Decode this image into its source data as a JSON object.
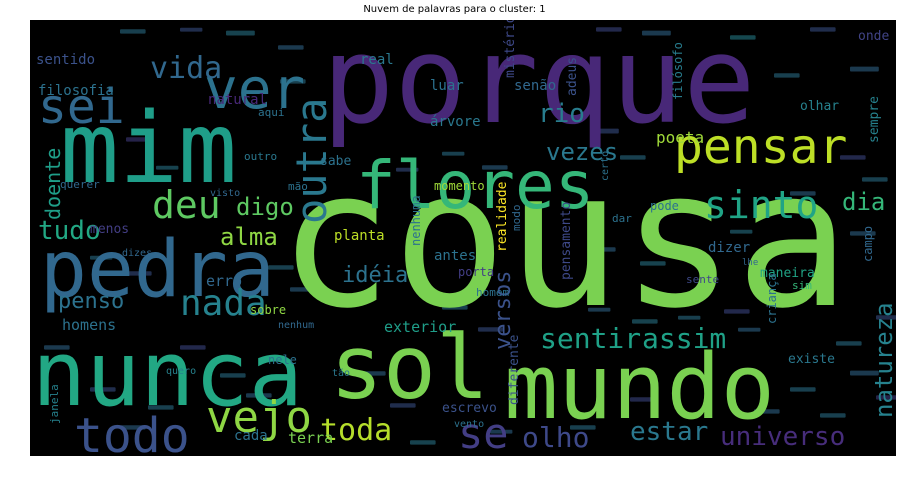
{
  "chart_data": {
    "type": "wordcloud",
    "title": "Nuvem de palavras para o cluster: 1",
    "background": "#000000",
    "colormap": "viridis",
    "axes_visible": false,
    "words": [
      {
        "text": "cousa",
        "weight": 100,
        "color": "#7ad151",
        "vertical": false
      },
      {
        "text": "porque",
        "weight": 92,
        "color": "#482878",
        "vertical": false
      },
      {
        "text": "mim",
        "weight": 70,
        "color": "#1f9e89",
        "vertical": false
      },
      {
        "text": "mundo",
        "weight": 64,
        "color": "#7ad151",
        "vertical": false
      },
      {
        "text": "nunca",
        "weight": 64,
        "color": "#22a884",
        "vertical": false
      },
      {
        "text": "sol",
        "weight": 62,
        "color": "#7ad151",
        "vertical": false
      },
      {
        "text": "pedra",
        "weight": 55,
        "color": "#31688e",
        "vertical": false
      },
      {
        "text": "flores",
        "weight": 48,
        "color": "#35b779",
        "vertical": false
      },
      {
        "text": "pensar",
        "weight": 40,
        "color": "#bddf26",
        "vertical": false
      },
      {
        "text": "ver",
        "weight": 40,
        "color": "#2c728e",
        "vertical": false
      },
      {
        "text": "sei",
        "weight": 34,
        "color": "#31688e",
        "vertical": false
      },
      {
        "text": "todo",
        "weight": 34,
        "color": "#3b528b",
        "vertical": false
      },
      {
        "text": "vejo",
        "weight": 31,
        "color": "#8fd744",
        "vertical": false
      },
      {
        "text": "se",
        "weight": 30,
        "color": "#433e85",
        "vertical": false
      },
      {
        "text": "outra",
        "weight": 30,
        "color": "#2a788e",
        "vertical": true
      },
      {
        "text": "deu",
        "weight": 28,
        "color": "#5ec962",
        "vertical": false
      },
      {
        "text": "sinto",
        "weight": 28,
        "color": "#20a486",
        "vertical": false
      },
      {
        "text": "nada",
        "weight": 26,
        "color": "#26828e",
        "vertical": false
      },
      {
        "text": "toda",
        "weight": 22,
        "color": "#b5de2b",
        "vertical": false
      },
      {
        "text": "vida",
        "weight": 22,
        "color": "#31688e",
        "vertical": false
      },
      {
        "text": "sentir",
        "weight": 20,
        "color": "#1fa187",
        "vertical": false
      },
      {
        "text": "assim",
        "weight": 20,
        "color": "#1fa187",
        "vertical": false
      },
      {
        "text": "olho",
        "weight": 20,
        "color": "#3e4989",
        "vertical": false
      },
      {
        "text": "universo",
        "weight": 18,
        "color": "#472d7b",
        "vertical": false
      },
      {
        "text": "rio",
        "weight": 18,
        "color": "#287d8e",
        "vertical": false
      },
      {
        "text": "tudo",
        "weight": 18,
        "color": "#22a884",
        "vertical": false
      },
      {
        "text": "estar",
        "weight": 18,
        "color": "#2a788e",
        "vertical": false
      },
      {
        "text": "alma",
        "weight": 17,
        "color": "#8fd744",
        "vertical": false
      },
      {
        "text": "vezes",
        "weight": 17,
        "color": "#2a788e",
        "vertical": false
      },
      {
        "text": "dia",
        "weight": 17,
        "color": "#35b779",
        "vertical": false
      },
      {
        "text": "digo",
        "weight": 17,
        "color": "#5ec962",
        "vertical": false
      },
      {
        "text": "natureza",
        "weight": 17,
        "color": "#26828e",
        "vertical": true
      },
      {
        "text": "versos",
        "weight": 16,
        "color": "#3b528b",
        "vertical": true
      },
      {
        "text": "idéia",
        "weight": 15,
        "color": "#2c728e",
        "vertical": false
      },
      {
        "text": "penso",
        "weight": 15,
        "color": "#2c728e",
        "vertical": false
      },
      {
        "text": "doente",
        "weight": 14,
        "color": "#1f9e89",
        "vertical": true
      },
      {
        "text": "poeta",
        "weight": 11,
        "color": "#a0da39",
        "vertical": false
      },
      {
        "text": "terra",
        "weight": 11,
        "color": "#7ad151",
        "vertical": false
      },
      {
        "text": "homens",
        "weight": 11,
        "color": "#2c728e",
        "vertical": false
      },
      {
        "text": "erro",
        "weight": 11,
        "color": "#31688e",
        "vertical": false
      },
      {
        "text": "exterior",
        "weight": 11,
        "color": "#1f9e89",
        "vertical": false
      },
      {
        "text": "sentido",
        "weight": 10,
        "color": "#3b528b",
        "vertical": false
      },
      {
        "text": "natural",
        "weight": 10,
        "color": "#482878",
        "vertical": false
      },
      {
        "text": "filosofia",
        "weight": 10,
        "color": "#2c728e",
        "vertical": false
      },
      {
        "text": "árvore",
        "weight": 10,
        "color": "#2a788e",
        "vertical": false
      },
      {
        "text": "real",
        "weight": 10,
        "color": "#2a788e",
        "vertical": false
      },
      {
        "text": "luar",
        "weight": 10,
        "color": "#2c728e",
        "vertical": false
      },
      {
        "text": "senão",
        "weight": 10,
        "color": "#31688e",
        "vertical": false
      },
      {
        "text": "adeus",
        "weight": 9,
        "color": "#3b528b",
        "vertical": true
      },
      {
        "text": "mistério",
        "weight": 9,
        "color": "#3e4989",
        "vertical": true
      },
      {
        "text": "onde",
        "weight": 9,
        "color": "#414487",
        "vertical": false
      },
      {
        "text": "olhar",
        "weight": 9,
        "color": "#26828e",
        "vertical": false
      },
      {
        "text": "sempre",
        "weight": 9,
        "color": "#26828e",
        "vertical": true
      },
      {
        "text": "filósofo",
        "weight": 8,
        "color": "#287d8e",
        "vertical": true
      },
      {
        "text": "sabe",
        "weight": 9,
        "color": "#2c728e",
        "vertical": false
      },
      {
        "text": "menos",
        "weight": 9,
        "color": "#433e85",
        "vertical": false
      },
      {
        "text": "planta",
        "weight": 10,
        "color": "#bddf26",
        "vertical": false
      },
      {
        "text": "antes",
        "weight": 10,
        "color": "#2c728e",
        "vertical": false
      },
      {
        "text": "realidade",
        "weight": 9,
        "color": "#fde725",
        "vertical": true
      },
      {
        "text": "dizer",
        "weight": 10,
        "color": "#31688e",
        "vertical": false
      },
      {
        "text": "maneira",
        "weight": 9,
        "color": "#20a486",
        "vertical": false
      },
      {
        "text": "campo",
        "weight": 8,
        "color": "#31688e",
        "vertical": true
      },
      {
        "text": "pensamento",
        "weight": 9,
        "color": "#3e4989",
        "vertical": true
      },
      {
        "text": "criança",
        "weight": 8,
        "color": "#2c728e",
        "vertical": true
      },
      {
        "text": "diferente",
        "weight": 9,
        "color": "#3b528b",
        "vertical": true
      },
      {
        "text": "existe",
        "weight": 9,
        "color": "#2a788e",
        "vertical": false
      },
      {
        "text": "escrevo",
        "weight": 9,
        "color": "#3b528b",
        "vertical": false
      },
      {
        "text": "cada",
        "weight": 10,
        "color": "#2c728e",
        "vertical": false
      },
      {
        "text": "nele",
        "weight": 8,
        "color": "#2c728e",
        "vertical": false
      },
      {
        "text": "sobre",
        "weight": 8,
        "color": "#8fd744",
        "vertical": false
      },
      {
        "text": "janela",
        "weight": 7,
        "color": "#26828e",
        "vertical": true
      },
      {
        "text": "momento",
        "weight": 8,
        "color": "#a0da39",
        "vertical": false
      },
      {
        "text": "nenhuma",
        "weight": 8,
        "color": "#2c728e",
        "vertical": true
      },
      {
        "text": "modo",
        "weight": 7,
        "color": "#31688e",
        "vertical": true
      },
      {
        "text": "pode",
        "weight": 8,
        "color": "#2c728e",
        "vertical": false
      },
      {
        "text": "porta",
        "weight": 8,
        "color": "#433e85",
        "vertical": false
      },
      {
        "text": "querer",
        "weight": 7,
        "color": "#31688e",
        "vertical": false
      },
      {
        "text": "outro",
        "weight": 7,
        "color": "#2a788e",
        "vertical": false
      },
      {
        "text": "aqui",
        "weight": 7,
        "color": "#2c728e",
        "vertical": false
      },
      {
        "text": "mão",
        "weight": 7,
        "color": "#2c728e",
        "vertical": false
      },
      {
        "text": "dar",
        "weight": 7,
        "color": "#2c728e",
        "vertical": false
      },
      {
        "text": "sente",
        "weight": 7,
        "color": "#3e4989",
        "vertical": false
      },
      {
        "text": "sim",
        "weight": 7,
        "color": "#35b779",
        "vertical": false
      },
      {
        "text": "homem",
        "weight": 7,
        "color": "#2c728e",
        "vertical": false
      },
      {
        "text": "vento",
        "weight": 6,
        "color": "#2c728e",
        "vertical": false
      },
      {
        "text": "dizes",
        "weight": 6,
        "color": "#31688e",
        "vertical": false
      },
      {
        "text": "visto",
        "weight": 6,
        "color": "#31688e",
        "vertical": false
      },
      {
        "text": "tão",
        "weight": 6,
        "color": "#2a788e",
        "vertical": false
      },
      {
        "text": "quero",
        "weight": 6,
        "color": "#26828e",
        "vertical": false
      },
      {
        "text": "nenhum",
        "weight": 6,
        "color": "#31688e",
        "vertical": false
      },
      {
        "text": "certo",
        "weight": 6,
        "color": "#2c728e",
        "vertical": true
      },
      {
        "text": "lhe",
        "weight": 5,
        "color": "#31688e",
        "vertical": false
      }
    ]
  }
}
